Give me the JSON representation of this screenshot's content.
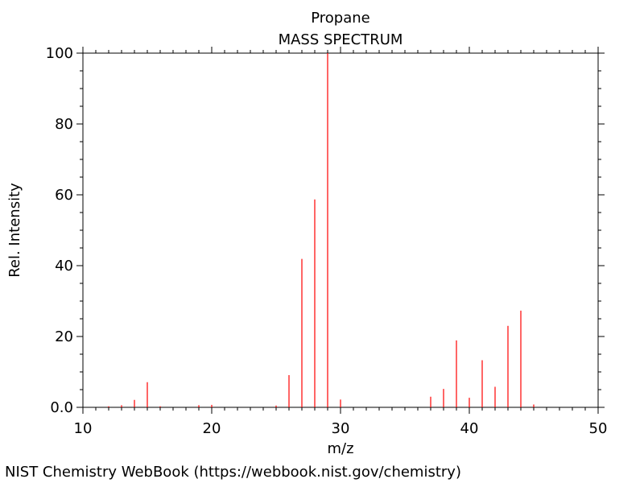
{
  "source_note": "NIST Chemistry WebBook (https://webbook.nist.gov/chemistry)",
  "chart_data": {
    "type": "bar",
    "title": "Propane",
    "subtitle": "MASS SPECTRUM",
    "xlabel": "m/z",
    "ylabel": "Rel. Intensity",
    "xlim": [
      10,
      50
    ],
    "ylim": [
      0,
      100
    ],
    "x_ticks": [
      10,
      20,
      30,
      40,
      50
    ],
    "x_tick_labels": [
      "10",
      "20",
      "30",
      "40",
      "50"
    ],
    "y_ticks": [
      0,
      20,
      40,
      60,
      80,
      100
    ],
    "y_tick_labels": [
      "0.0",
      "20",
      "40",
      "60",
      "80",
      "100"
    ],
    "grid": false,
    "bar_color": "#ff0000",
    "peaks": {
      "mz": [
        12,
        13,
        14,
        15,
        16,
        19,
        20,
        25,
        26,
        27,
        28,
        29,
        30,
        37,
        38,
        39,
        40,
        41,
        42,
        43,
        44,
        45
      ],
      "intensity": [
        0.3,
        0.6,
        2.1,
        7.1,
        0.3,
        0.6,
        0.7,
        0.5,
        9.1,
        41.9,
        58.7,
        100,
        2.2,
        3.0,
        5.2,
        18.9,
        2.7,
        13.3,
        5.8,
        23.0,
        27.3,
        0.8
      ]
    }
  }
}
